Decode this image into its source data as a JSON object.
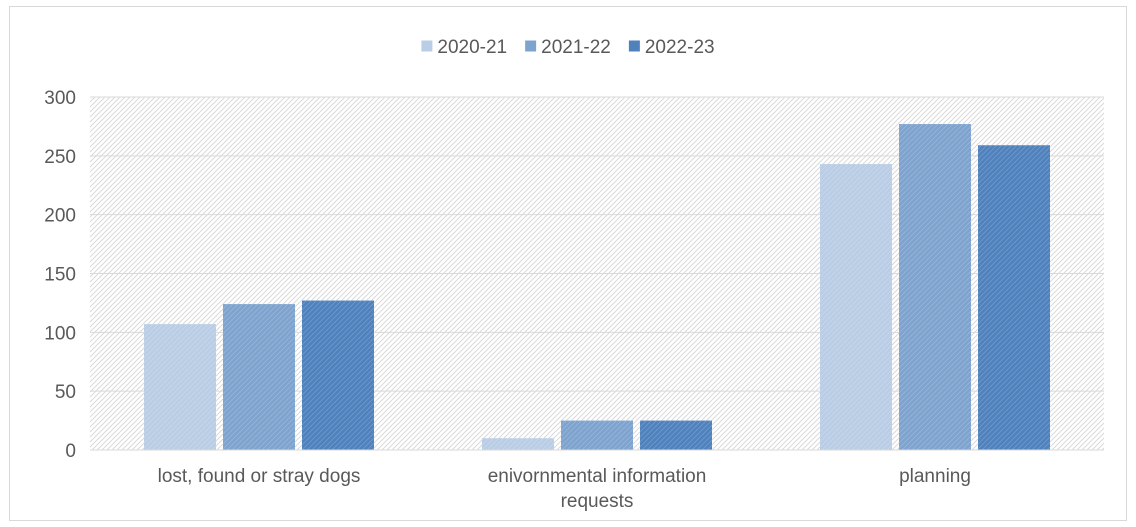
{
  "chart_data": {
    "type": "bar",
    "title": "",
    "xlabel": "",
    "ylabel": "",
    "categories": [
      [
        "lost, found or stray dogs"
      ],
      [
        "enivornmental information",
        "requests"
      ],
      [
        "planning"
      ]
    ],
    "series": [
      {
        "name": "2020-21",
        "color": "#b9cde5",
        "values": [
          107,
          10,
          243
        ]
      },
      {
        "name": "2021-22",
        "color": "#7ea3cf",
        "values": [
          124,
          25,
          277
        ]
      },
      {
        "name": "2022-23",
        "color": "#4f81bd",
        "values": [
          127,
          25,
          259
        ]
      }
    ],
    "ylim": [
      0,
      300
    ],
    "yticks": [
      0,
      50,
      100,
      150,
      200,
      250,
      300
    ],
    "grid": true,
    "legend_position": "top-center",
    "plot_background": "diagonal-hatch"
  }
}
